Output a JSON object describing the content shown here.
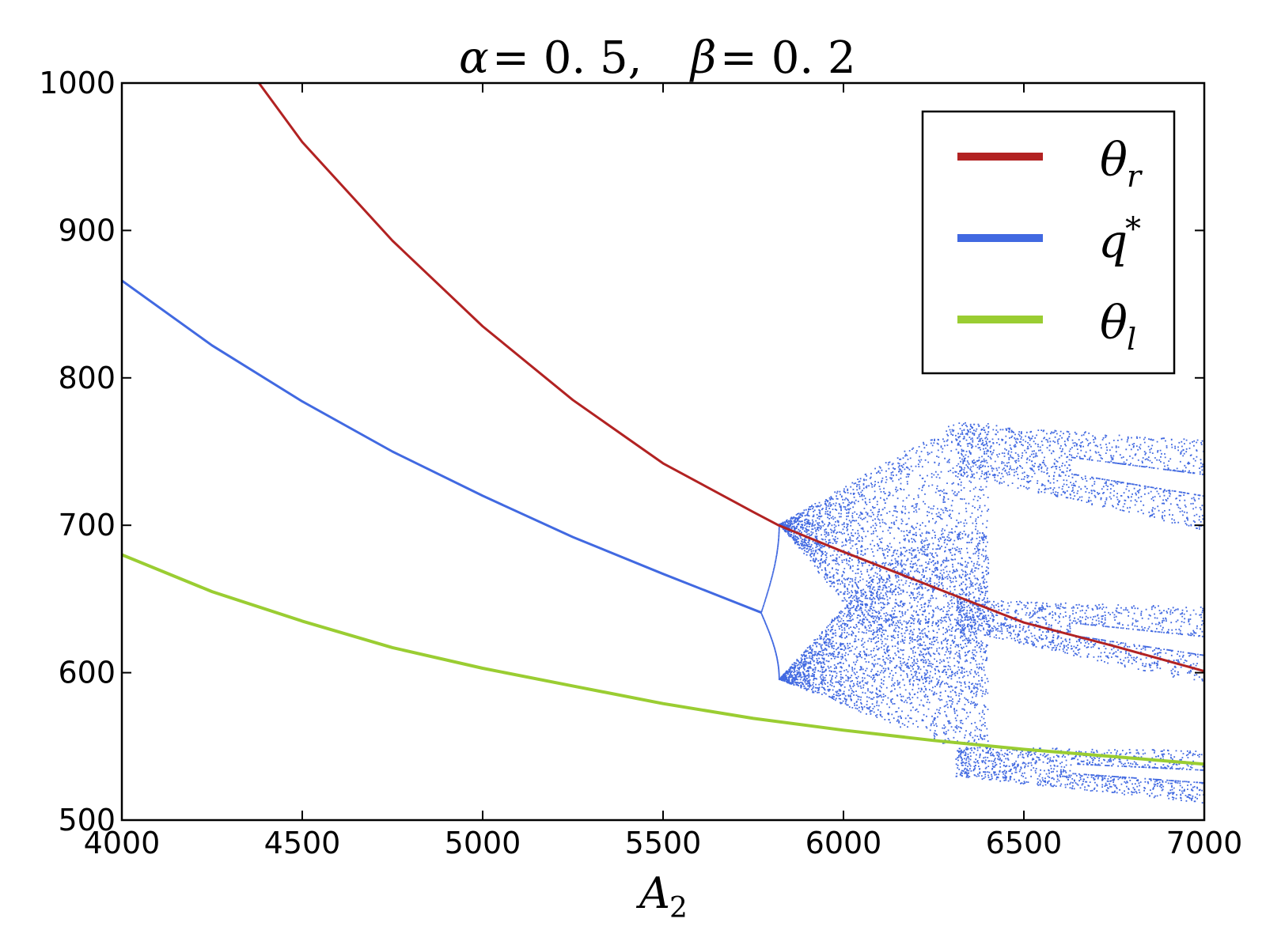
{
  "chart_data": {
    "type": "scatter",
    "title": {
      "alpha_sym": "α",
      "alpha_val": "= 0. 5,",
      "beta_sym": "β",
      "beta_val": "= 0. 2"
    },
    "xlabel": {
      "base": "A",
      "sub": "2"
    },
    "ylabel": "",
    "xlim": [
      4000,
      7000
    ],
    "ylim": [
      500,
      1000
    ],
    "xticks": [
      "4000",
      "4500",
      "5000",
      "5500",
      "6000",
      "6500",
      "7000"
    ],
    "yticks": [
      "500",
      "600",
      "700",
      "800",
      "900",
      "1000"
    ],
    "xtick_values": [
      4000,
      4500,
      5000,
      5500,
      6000,
      6500,
      7000
    ],
    "ytick_values": [
      500,
      600,
      700,
      800,
      900,
      1000
    ],
    "grid": false,
    "legend_position": "top-right",
    "series": [
      {
        "key": "theta_r",
        "legend_base": "θ",
        "legend_sub": "r",
        "color": "#b22222",
        "kind": "line",
        "x": [
          4380,
          4500,
          4750,
          5000,
          5250,
          5500,
          5750,
          5820,
          6000,
          6250,
          6500,
          6750,
          7000
        ],
        "y": [
          1000,
          960,
          893,
          835,
          785,
          742,
          709,
          700,
          682,
          658,
          634,
          618,
          601
        ]
      },
      {
        "key": "q_star",
        "legend_base": "q",
        "legend_sup": "*",
        "color": "#4169e1",
        "kind": "line",
        "x": [
          4000,
          4250,
          4500,
          4750,
          5000,
          5250,
          5500,
          5770
        ],
        "y": [
          866,
          822,
          784,
          750,
          720,
          692,
          667,
          641
        ]
      },
      {
        "key": "theta_l",
        "legend_base": "θ",
        "legend_sub": "l",
        "color": "#9acd32",
        "kind": "line",
        "x": [
          4000,
          4250,
          4500,
          4750,
          5000,
          5250,
          5500,
          5750,
          6000,
          6250,
          6500,
          6750,
          7000
        ],
        "y": [
          680,
          655,
          635,
          617,
          603,
          591,
          579,
          569,
          561,
          554,
          548,
          543,
          538
        ]
      }
    ],
    "bifurcation": {
      "color": "#4169e1",
      "start_x": 5770,
      "start_y": 641,
      "fork_x": 5820,
      "upper_branch_y": 701,
      "lower_branch_y": 596,
      "chaos_end_x": 6400,
      "chaos_upper_max_y": 770,
      "chaos_lower_min_y": 552,
      "window_x_start": 6310,
      "window_split_x": 6630,
      "window_x_end": 7000,
      "bands": [
        {
          "y_start_top": 770,
          "y_start_bottom": 735,
          "y_end_top": 758,
          "y_end_bottom": 697
        },
        {
          "y_start_top": 650,
          "y_start_bottom": 630,
          "y_end_top": 645,
          "y_end_bottom": 592
        },
        {
          "y_start_top": 550,
          "y_start_bottom": 530,
          "y_end_top": 548,
          "y_end_bottom": 512
        }
      ]
    }
  }
}
